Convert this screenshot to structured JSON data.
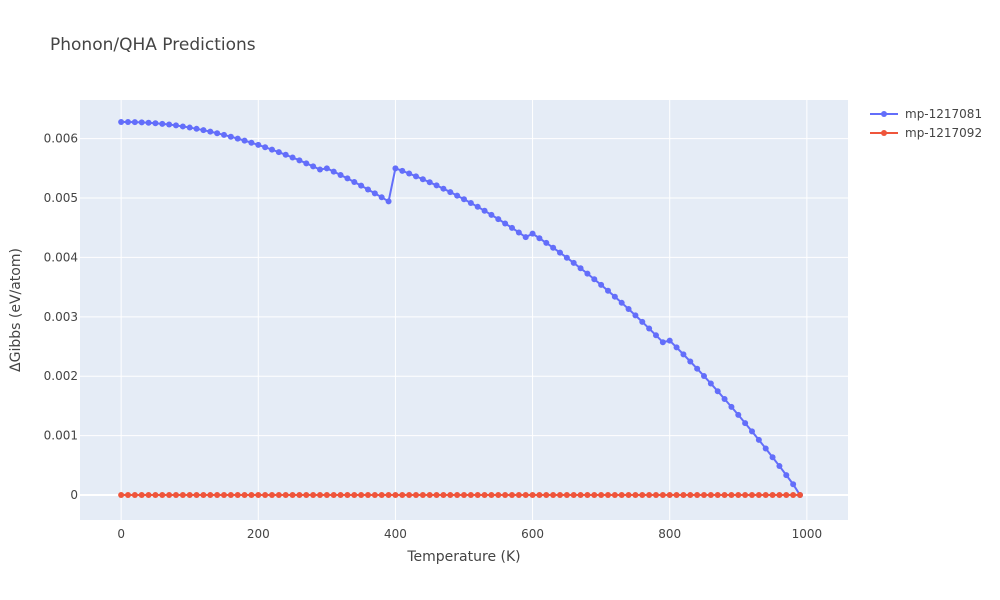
{
  "chart_data": {
    "type": "line",
    "title": "Phonon/QHA Predictions",
    "xlabel": "Temperature (K)",
    "ylabel": "ΔGibbs (eV/atom)",
    "xlim": [
      -60,
      1060
    ],
    "ylim": [
      -0.00042,
      0.00665
    ],
    "x_ticks": [
      0,
      200,
      400,
      600,
      800,
      1000
    ],
    "x_tick_labels": [
      "0",
      "200",
      "400",
      "600",
      "800",
      "1000"
    ],
    "y_ticks": [
      0,
      0.001,
      0.002,
      0.003,
      0.004,
      0.005,
      0.006
    ],
    "y_tick_labels": [
      "0",
      "0.001",
      "0.002",
      "0.003",
      "0.004",
      "0.005",
      "0.006"
    ],
    "grid": true,
    "legend_position": "top-right",
    "x": [
      0,
      10,
      20,
      30,
      40,
      50,
      60,
      70,
      80,
      90,
      100,
      110,
      120,
      130,
      140,
      150,
      160,
      170,
      180,
      190,
      200,
      210,
      220,
      230,
      240,
      250,
      260,
      270,
      280,
      290,
      300,
      310,
      320,
      330,
      340,
      350,
      360,
      370,
      380,
      390,
      400,
      410,
      420,
      430,
      440,
      450,
      460,
      470,
      480,
      490,
      500,
      510,
      520,
      530,
      540,
      550,
      560,
      570,
      580,
      590,
      600,
      610,
      620,
      630,
      640,
      650,
      660,
      670,
      680,
      690,
      700,
      710,
      720,
      730,
      740,
      750,
      760,
      770,
      780,
      790,
      800,
      810,
      820,
      830,
      840,
      850,
      860,
      870,
      880,
      890,
      900,
      910,
      920,
      930,
      940,
      950,
      960,
      970,
      980,
      990
    ],
    "series": [
      {
        "name": "mp-1217081",
        "color": "#636efa",
        "values": [
          0.00628,
          0.00628,
          0.006277,
          0.006273,
          0.006267,
          0.006259,
          0.006249,
          0.006237,
          0.006222,
          0.006205,
          0.006186,
          0.006165,
          0.006142,
          0.006117,
          0.006091,
          0.006062,
          0.006032,
          0.006,
          0.005966,
          0.005931,
          0.005894,
          0.005855,
          0.005814,
          0.005772,
          0.005728,
          0.005682,
          0.005634,
          0.005584,
          0.005532,
          0.005479,
          0.0055,
          0.005445,
          0.005388,
          0.00533,
          0.00527,
          0.005208,
          0.005144,
          0.005079,
          0.005012,
          0.004943,
          0.0055,
          0.005457,
          0.005412,
          0.005365,
          0.005316,
          0.005265,
          0.005212,
          0.005157,
          0.0051,
          0.005041,
          0.00498,
          0.004917,
          0.004852,
          0.004785,
          0.004716,
          0.004645,
          0.004572,
          0.004497,
          0.00442,
          0.004341,
          0.0044,
          0.004323,
          0.004244,
          0.004163,
          0.00408,
          0.003995,
          0.003908,
          0.003818,
          0.003727,
          0.003633,
          0.003537,
          0.003439,
          0.003339,
          0.003236,
          0.003131,
          0.003024,
          0.002915,
          0.002803,
          0.002689,
          0.002573,
          0.0026,
          0.002485,
          0.002368,
          0.002248,
          0.002127,
          0.002003,
          0.001877,
          0.001748,
          0.001617,
          0.001484,
          0.001349,
          0.001211,
          0.001071,
          0.000929,
          0.000784,
          0.000637,
          0.000488,
          0.000336,
          0.000182,
          0.0
        ]
      },
      {
        "name": "mp-1217092",
        "color": "#ef553b",
        "values": [
          0,
          0,
          0,
          0,
          0,
          0,
          0,
          0,
          0,
          0,
          0,
          0,
          0,
          0,
          0,
          0,
          0,
          0,
          0,
          0,
          0,
          0,
          0,
          0,
          0,
          0,
          0,
          0,
          0,
          0,
          0,
          0,
          0,
          0,
          0,
          0,
          0,
          0,
          0,
          0,
          0,
          0,
          0,
          0,
          0,
          0,
          0,
          0,
          0,
          0,
          0,
          0,
          0,
          0,
          0,
          0,
          0,
          0,
          0,
          0,
          0,
          0,
          0,
          0,
          0,
          0,
          0,
          0,
          0,
          0,
          0,
          0,
          0,
          0,
          0,
          0,
          0,
          0,
          0,
          0,
          0,
          0,
          0,
          0,
          0,
          0,
          0,
          0,
          0,
          0,
          0,
          0,
          0,
          0,
          0,
          0,
          0,
          0,
          0,
          0
        ]
      }
    ]
  },
  "plot_background": "#e5ecf6",
  "grid_color": "#ffffff"
}
